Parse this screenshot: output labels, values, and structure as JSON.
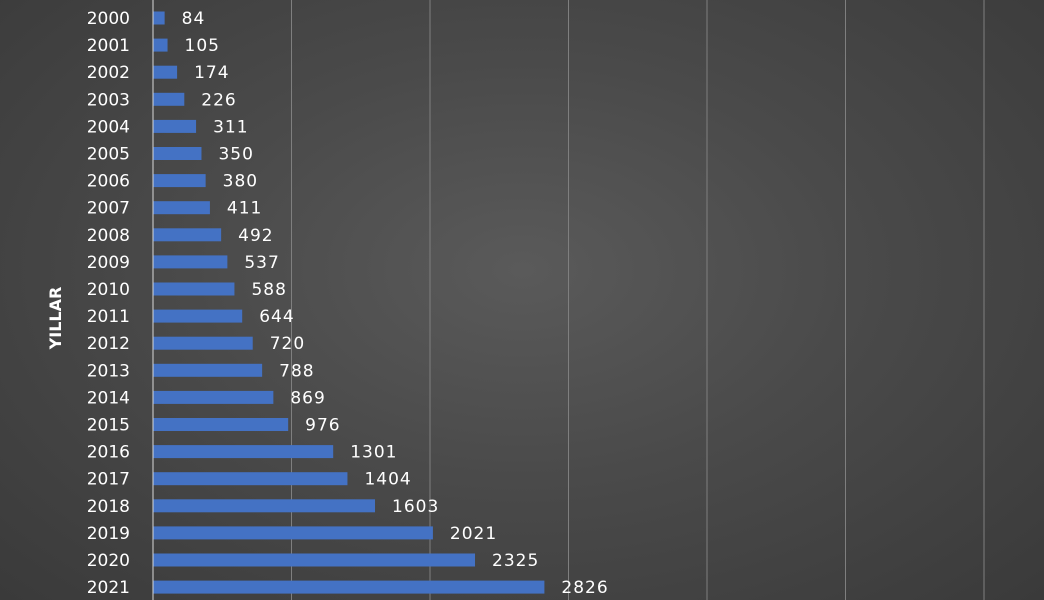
{
  "chart_data": {
    "type": "bar",
    "orientation": "horizontal",
    "ylabel": "YILLAR",
    "categories": [
      "2000",
      "2001",
      "2002",
      "2003",
      "2004",
      "2005",
      "2006",
      "2007",
      "2008",
      "2009",
      "2010",
      "2011",
      "2012",
      "2013",
      "2014",
      "2015",
      "2016",
      "2017",
      "2018",
      "2019",
      "2020",
      "2021"
    ],
    "values": [
      84,
      105,
      174,
      226,
      311,
      350,
      380,
      411,
      492,
      537,
      588,
      644,
      720,
      788,
      869,
      976,
      1301,
      1404,
      1603,
      2021,
      2325,
      2826
    ],
    "xlim": [
      0,
      6000
    ],
    "grid": true,
    "bar_color": "#4472C4",
    "text_color": "#FFFFFF",
    "gridline_color": "#7F7F7F"
  }
}
